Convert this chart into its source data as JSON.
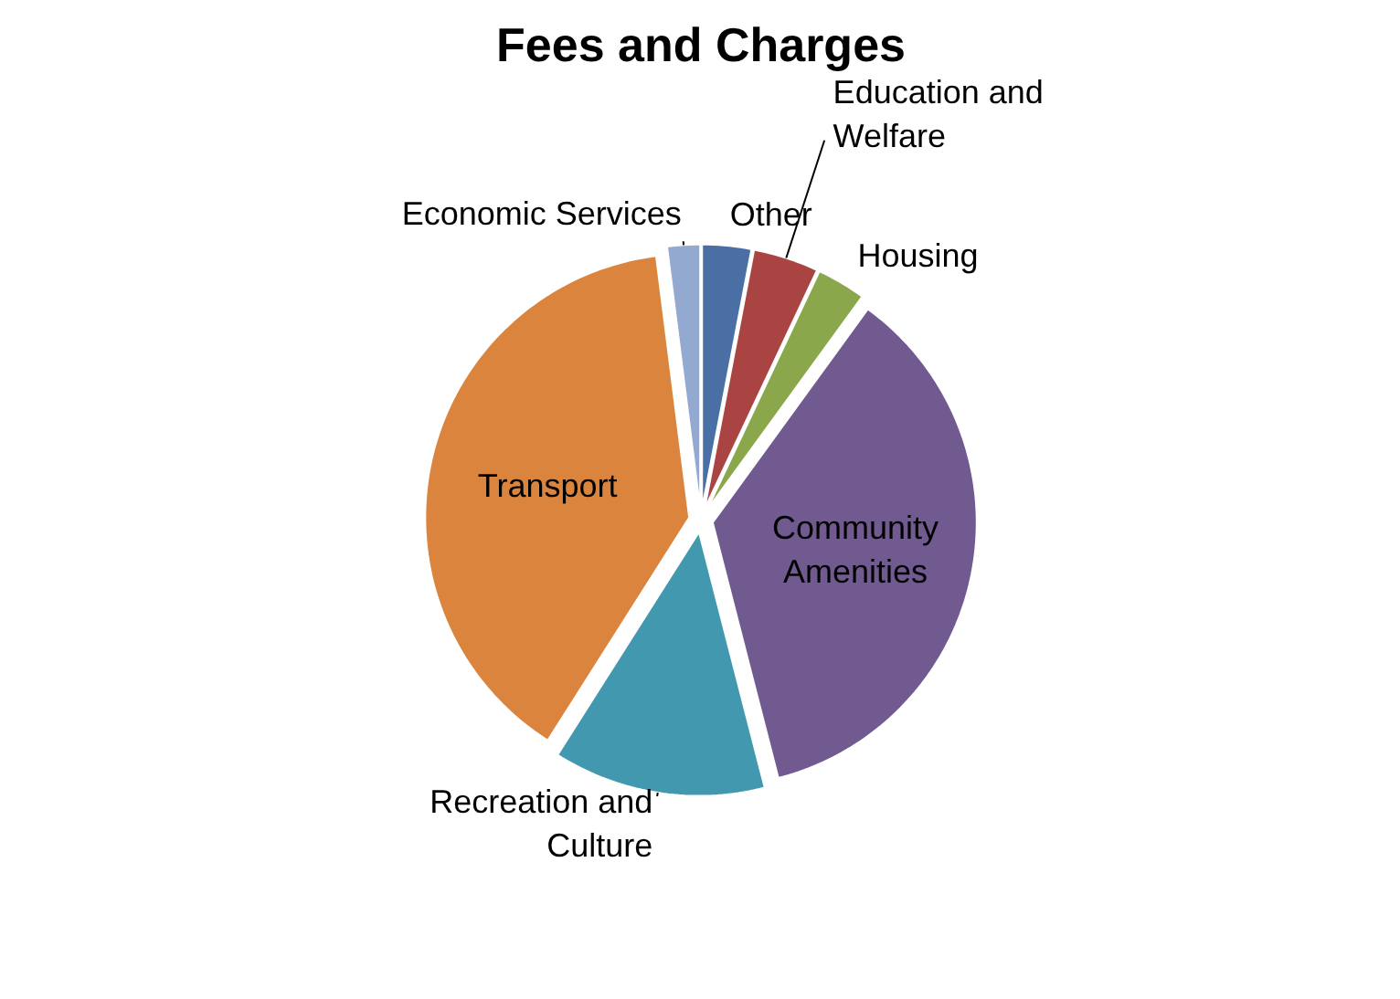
{
  "chart_data": {
    "type": "pie",
    "title": "Fees and Charges",
    "categories": [
      "Other",
      "Education and Welfare",
      "Housing",
      "Community Amenities",
      "Recreation and Culture",
      "Transport",
      "Economic Services"
    ],
    "values": [
      3,
      4,
      3,
      36,
      13,
      39,
      2
    ],
    "colors": [
      "#4a6fa5",
      "#a94442",
      "#8aa84b",
      "#705a90",
      "#4298ae",
      "#db843d",
      "#93a9cf"
    ]
  }
}
